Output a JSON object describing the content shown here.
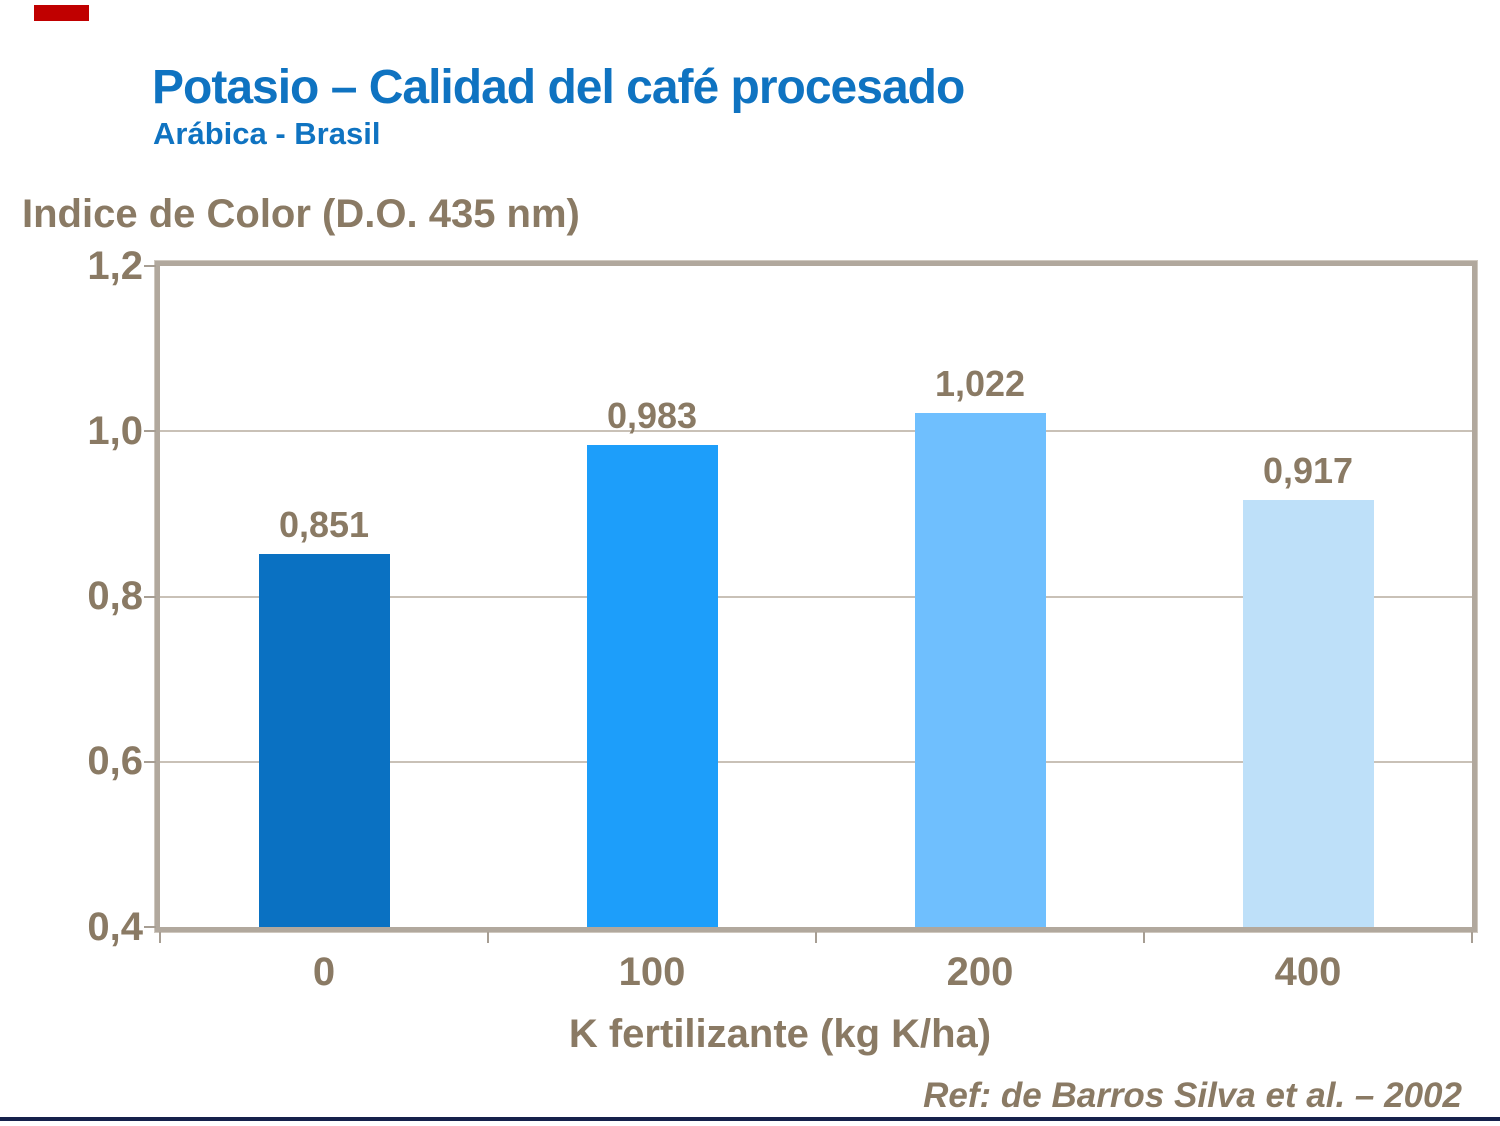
{
  "header": {
    "title": "Potasio – Calidad del café procesado",
    "subtitle": "Arábica - Brasil"
  },
  "chart_data": {
    "type": "bar",
    "title": "Potasio – Calidad del café procesado (Arábica - Brasil)",
    "ylabel": "Indice de Color (D.O. 435 nm)",
    "xlabel": "K fertilizante (kg K/ha)",
    "categories": [
      "0",
      "100",
      "200",
      "400"
    ],
    "values": [
      0.851,
      0.983,
      1.022,
      0.917
    ],
    "value_labels": [
      "0,851",
      "0,983",
      "1,022",
      "0,917"
    ],
    "bar_colors": [
      "#0a71c2",
      "#1d9efa",
      "#6fbffe",
      "#bee0f9"
    ],
    "ylim": [
      0.4,
      1.2
    ],
    "ytick_values": [
      0.4,
      0.6,
      0.8,
      1.0,
      1.2
    ],
    "ytick_labels": [
      "0,4",
      "0,6",
      "0,8",
      "1,0",
      "1,2"
    ],
    "grid": true,
    "legend": false
  },
  "footer": {
    "reference": "Ref: de Barros Silva et al. – 2002"
  },
  "colors": {
    "title_blue": "#0f73c1",
    "axis_brown": "#8a7a64",
    "frame_taupe": "#b1a89d",
    "gridline": "#c9c1b7",
    "logo_red": "#c00000",
    "bottom_rule_navy": "#15214b"
  }
}
